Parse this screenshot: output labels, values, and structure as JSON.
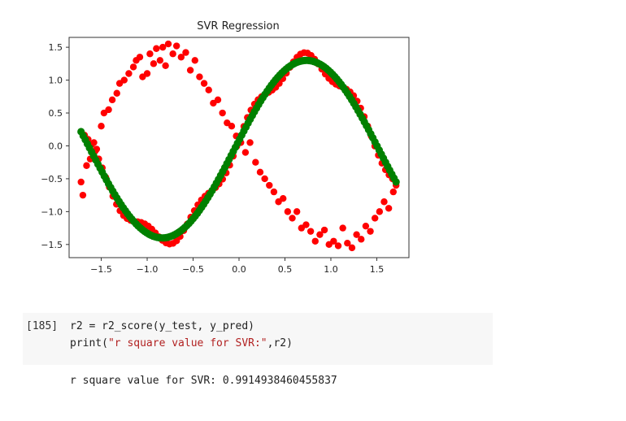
{
  "chart_data": {
    "type": "scatter",
    "title": "SVR Regression",
    "xlabel": "",
    "ylabel": "",
    "xlim": [
      -1.85,
      1.85
    ],
    "ylim": [
      -1.7,
      1.65
    ],
    "xticks": [
      -1.5,
      -1.0,
      -0.5,
      0.0,
      0.5,
      1.0,
      1.5
    ],
    "xtick_labels": [
      "−1.5",
      "−1.0",
      "−0.5",
      "0.0",
      "0.5",
      "1.0",
      "1.5"
    ],
    "yticks": [
      1.5,
      1.0,
      0.5,
      0.0,
      -0.5,
      -1.0,
      -1.5
    ],
    "ytick_labels": [
      "1.5",
      "1.0",
      "0.5",
      "0.0",
      "−0.5",
      "−1.0",
      "−1.5"
    ],
    "grid": false,
    "series": [
      {
        "role": "actual",
        "color": "#ff0000",
        "points": [
          [
            -1.72,
            -0.55
          ],
          [
            -1.7,
            -0.75
          ],
          [
            -1.66,
            -0.3
          ],
          [
            -1.62,
            -0.2
          ],
          [
            -1.58,
            0.05
          ],
          [
            -1.55,
            -0.05
          ],
          [
            -1.5,
            0.3
          ],
          [
            -1.47,
            0.5
          ],
          [
            -1.42,
            0.55
          ],
          [
            -1.38,
            0.7
          ],
          [
            -1.33,
            0.8
          ],
          [
            -1.3,
            0.95
          ],
          [
            -1.25,
            1.0
          ],
          [
            -1.2,
            1.1
          ],
          [
            -1.15,
            1.2
          ],
          [
            -1.12,
            1.3
          ],
          [
            -1.08,
            1.35
          ],
          [
            -1.05,
            1.05
          ],
          [
            -1.0,
            1.1
          ],
          [
            -0.97,
            1.4
          ],
          [
            -0.93,
            1.25
          ],
          [
            -0.9,
            1.48
          ],
          [
            -0.86,
            1.3
          ],
          [
            -0.83,
            1.5
          ],
          [
            -0.8,
            1.22
          ],
          [
            -0.77,
            1.55
          ],
          [
            -0.72,
            1.4
          ],
          [
            -0.68,
            1.52
          ],
          [
            -0.63,
            1.35
          ],
          [
            -0.58,
            1.42
          ],
          [
            -0.53,
            1.15
          ],
          [
            -0.48,
            1.3
          ],
          [
            -0.43,
            1.05
          ],
          [
            -0.38,
            0.95
          ],
          [
            -0.33,
            0.85
          ],
          [
            -0.28,
            0.65
          ],
          [
            -0.23,
            0.7
          ],
          [
            -0.18,
            0.5
          ],
          [
            -0.13,
            0.35
          ],
          [
            -0.08,
            0.3
          ],
          [
            -0.03,
            0.15
          ],
          [
            0.02,
            0.05
          ],
          [
            0.07,
            -0.1
          ],
          [
            0.12,
            0.05
          ],
          [
            0.18,
            -0.25
          ],
          [
            0.23,
            -0.4
          ],
          [
            0.28,
            -0.5
          ],
          [
            0.33,
            -0.6
          ],
          [
            0.38,
            -0.7
          ],
          [
            0.43,
            -0.85
          ],
          [
            0.48,
            -0.8
          ],
          [
            0.53,
            -1.0
          ],
          [
            0.58,
            -1.1
          ],
          [
            0.63,
            -1.0
          ],
          [
            0.68,
            -1.25
          ],
          [
            0.73,
            -1.2
          ],
          [
            0.78,
            -1.3
          ],
          [
            0.83,
            -1.45
          ],
          [
            0.88,
            -1.35
          ],
          [
            0.93,
            -1.28
          ],
          [
            0.98,
            -1.5
          ],
          [
            1.03,
            -1.45
          ],
          [
            1.08,
            -1.52
          ],
          [
            1.13,
            -1.25
          ],
          [
            1.18,
            -1.48
          ],
          [
            1.23,
            -1.55
          ],
          [
            1.28,
            -1.35
          ],
          [
            1.33,
            -1.42
          ],
          [
            1.38,
            -1.22
          ],
          [
            1.43,
            -1.3
          ],
          [
            1.48,
            -1.1
          ],
          [
            1.53,
            -1.0
          ],
          [
            1.58,
            -0.85
          ],
          [
            1.63,
            -0.95
          ],
          [
            1.68,
            -0.7
          ],
          [
            1.71,
            -0.6
          ]
        ]
      },
      {
        "role": "predicted",
        "color": "#008000",
        "function": "1.35*sin(2.0*(x+0.05))-0.05"
      }
    ]
  },
  "cell": {
    "prompt": "[185]",
    "line1": "r2 = r2_score(y_test, y_pred)",
    "line2_prefix": "print(",
    "line2_string": "\"r square value for SVR:\"",
    "line2_suffix": ",r2)",
    "output": "r square value for SVR: 0.9914938460455837"
  }
}
